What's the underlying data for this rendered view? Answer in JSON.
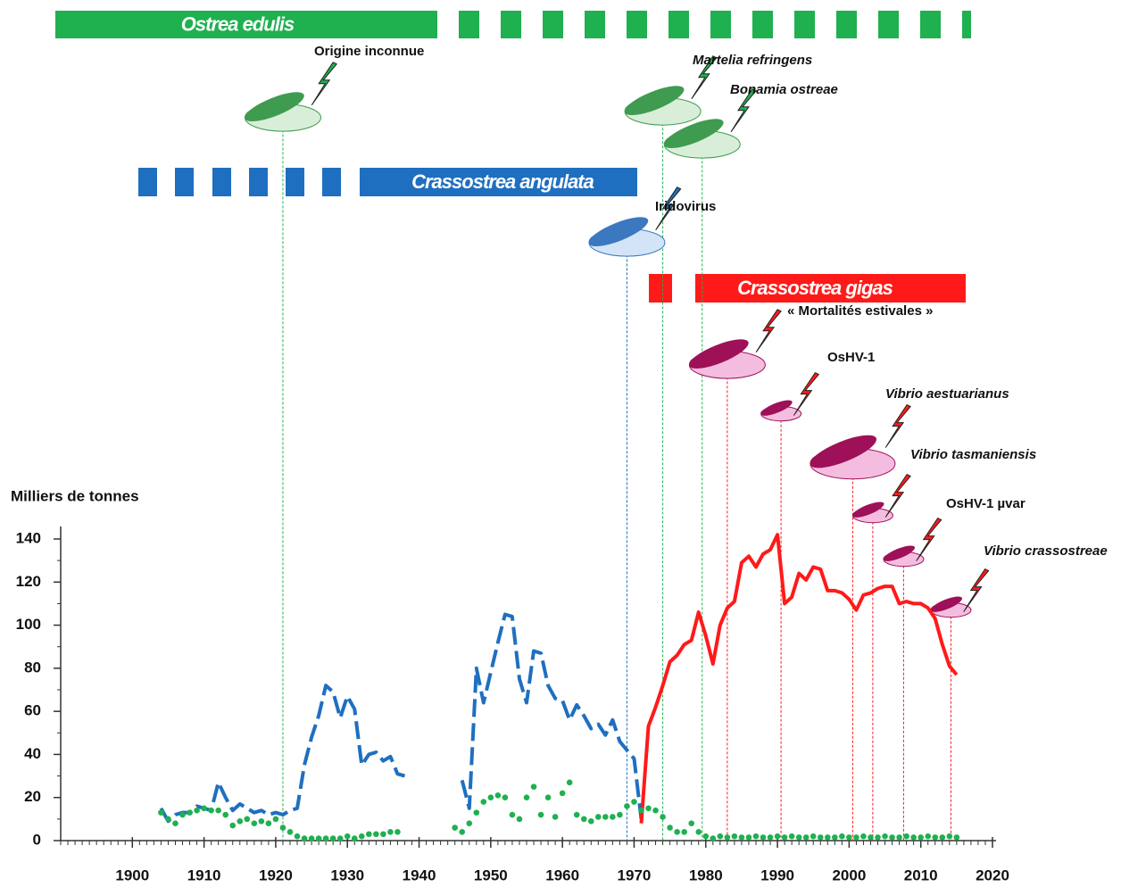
{
  "chart_data": {
    "type": "line",
    "y_label": "Milliers de tonnes",
    "xlim": [
      1890,
      2020
    ],
    "xticks": [
      1900,
      1910,
      1920,
      1930,
      1940,
      1950,
      1960,
      1970,
      1980,
      1990,
      2000,
      2010,
      2020
    ],
    "ylim": [
      0,
      140
    ],
    "yticks": [
      0,
      20,
      40,
      60,
      80,
      100,
      120,
      140
    ],
    "series": [
      {
        "name": "Crassostrea angulata",
        "color": "#1f6fc0",
        "style": "dashed",
        "x": [
          1904,
          1905,
          1906,
          1907,
          1908,
          1909,
          1910,
          1911,
          1912,
          1913,
          1914,
          1915,
          1916,
          1917,
          1918,
          1919,
          1920,
          1921,
          1922,
          1923,
          1924,
          1925,
          1926,
          1927,
          1928,
          1929,
          1930,
          1931,
          1932,
          1933,
          1934,
          1935,
          1936,
          1937,
          1938,
          1942,
          1946,
          1947,
          1948,
          1949,
          1950,
          1951,
          1952,
          1953,
          1954,
          1955,
          1956,
          1957,
          1958,
          1959,
          1960,
          1961,
          1962,
          1963,
          1964,
          1965,
          1966,
          1967,
          1968,
          1969,
          1970,
          1971
        ],
        "values": [
          15,
          9,
          12,
          13,
          13,
          16,
          15,
          14,
          27,
          20,
          14,
          17,
          15,
          13,
          14,
          12,
          13,
          12,
          14,
          15,
          35,
          48,
          58,
          72,
          69,
          57,
          67,
          61,
          35,
          40,
          41,
          37,
          39,
          31,
          30,
          null,
          28,
          15,
          80,
          64,
          78,
          92,
          105,
          104,
          75,
          64,
          88,
          87,
          72,
          66,
          65,
          56,
          63,
          58,
          52,
          54,
          49,
          56,
          46,
          42,
          38,
          10
        ]
      },
      {
        "name": "Crassostrea gigas",
        "color": "#ff1a1a",
        "style": "solid",
        "x": [
          1971,
          1972,
          1973,
          1974,
          1975,
          1976,
          1977,
          1978,
          1979,
          1980,
          1981,
          1982,
          1983,
          1984,
          1985,
          1986,
          1987,
          1988,
          1989,
          1990,
          1991,
          1992,
          1993,
          1994,
          1995,
          1996,
          1997,
          1998,
          1999,
          2000,
          2001,
          2002,
          2003,
          2004,
          2005,
          2006,
          2007,
          2008,
          2009,
          2010,
          2011,
          2012,
          2013,
          2014,
          2015
        ],
        "values": [
          8,
          53,
          62,
          72,
          83,
          86,
          91,
          93,
          106,
          95,
          82,
          100,
          108,
          111,
          129,
          132,
          127,
          133,
          135,
          142,
          110,
          113,
          124,
          121,
          127,
          126,
          116,
          116,
          115,
          112,
          107,
          114,
          115,
          117,
          118,
          118,
          110,
          111,
          110,
          110,
          108,
          103,
          91,
          81,
          77
        ]
      },
      {
        "name": "Ostrea edulis",
        "color": "#1fb050",
        "style": "dots",
        "x": [
          1904,
          1905,
          1906,
          1907,
          1908,
          1909,
          1910,
          1911,
          1912,
          1913,
          1914,
          1915,
          1916,
          1917,
          1918,
          1919,
          1920,
          1921,
          1922,
          1923,
          1924,
          1925,
          1926,
          1927,
          1928,
          1929,
          1930,
          1931,
          1932,
          1933,
          1934,
          1935,
          1936,
          1937,
          1941,
          1945,
          1946,
          1947,
          1948,
          1949,
          1950,
          1951,
          1952,
          1953,
          1954,
          1955,
          1956,
          1957,
          1958,
          1959,
          1960,
          1961,
          1962,
          1963,
          1964,
          1965,
          1966,
          1967,
          1968,
          1969,
          1970,
          1971,
          1972,
          1973,
          1974,
          1975,
          1976,
          1977,
          1978,
          1979,
          1980,
          1981,
          1982,
          1983,
          1984,
          1985,
          1986,
          1987,
          1988,
          1989,
          1990,
          1991,
          1992,
          1993,
          1994,
          1995,
          1996,
          1997,
          1998,
          1999,
          2000,
          2001,
          2002,
          2003,
          2004,
          2005,
          2006,
          2007,
          2008,
          2009,
          2010,
          2011,
          2012,
          2013,
          2014,
          2015
        ],
        "values": [
          13,
          10,
          8,
          12,
          13,
          14,
          15,
          14,
          14,
          12,
          7,
          9,
          10,
          8,
          9,
          8,
          10,
          6,
          4,
          2,
          1,
          1,
          1,
          1,
          1,
          1,
          2,
          1,
          2,
          3,
          3,
          3,
          4,
          4,
          null,
          6,
          4,
          8,
          13,
          18,
          20,
          21,
          20,
          12,
          10,
          20,
          25,
          12,
          20,
          11,
          22,
          27,
          12,
          10,
          9,
          11,
          11,
          11,
          12,
          16,
          18,
          14,
          15,
          14,
          11,
          6,
          4,
          4,
          8,
          4,
          2,
          1,
          2,
          1.5,
          2,
          1.5,
          1.5,
          2,
          1.5,
          1.5,
          2,
          1.5,
          2,
          1.5,
          1.5,
          2,
          1.5,
          1.5,
          1.5,
          2,
          1.5,
          1.5,
          2,
          1.5,
          1.5,
          2,
          1.5,
          1.5,
          2,
          1.5,
          1.5,
          2,
          1.5,
          1.5,
          2,
          1.5
        ]
      }
    ],
    "timelines": [
      {
        "label": "Ostrea edulis",
        "color": "#1fb050"
      },
      {
        "label": "Crassostrea angulata",
        "color": "#1f6fc0"
      },
      {
        "label": "Crassostrea gigas",
        "color": "#ff1a1a"
      }
    ],
    "events": [
      {
        "label": "Origine inconnue",
        "year": 1921,
        "color": "#1fb050",
        "italic": false
      },
      {
        "label": "Martelia refringens",
        "year": 1974,
        "color": "#1fb050",
        "italic": true
      },
      {
        "label": "Bonamia ostreae",
        "year": 1979.5,
        "color": "#1fb050",
        "italic": true
      },
      {
        "label": "Iridovirus",
        "year": 1969,
        "color": "#1f6fc0",
        "italic": false
      },
      {
        "label": "« Mortalités estivales »",
        "year": 1983,
        "color": "#ff1a1a",
        "italic": false
      },
      {
        "label": "OsHV-1",
        "year": 1990.5,
        "color": "#ff1a1a",
        "italic": false
      },
      {
        "label": "Vibrio aestuarianus",
        "year": 2000.5,
        "color": "#ff1a1a",
        "italic": true
      },
      {
        "label": "Vibrio tasmaniensis",
        "year": 2003.3,
        "color": "#ff1a1a",
        "italic": true
      },
      {
        "label": "OsHV-1 µvar",
        "year": 2007.6,
        "color": "#ff1a1a",
        "italic": false
      },
      {
        "label": "Vibrio crassostreae",
        "year": 2014.2,
        "color": "#ff1a1a",
        "italic": true
      }
    ]
  }
}
